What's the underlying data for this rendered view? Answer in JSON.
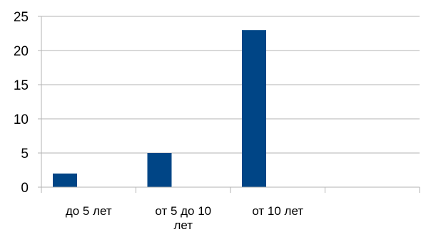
{
  "chart_data": {
    "type": "bar",
    "categories": [
      [
        "до 5 лет"
      ],
      [
        "от 5 до 10",
        "лет"
      ],
      [
        "от 10 лет"
      ],
      [
        ""
      ]
    ],
    "values": [
      2,
      5,
      23,
      null
    ],
    "ylim": [
      0,
      25
    ],
    "yticks": [
      0,
      5,
      10,
      15,
      20,
      25
    ],
    "grid": true,
    "legend": "none",
    "colors": {
      "bar": "#004586",
      "grid": "#b3b3b3",
      "axis": "#b3b3b3"
    }
  }
}
